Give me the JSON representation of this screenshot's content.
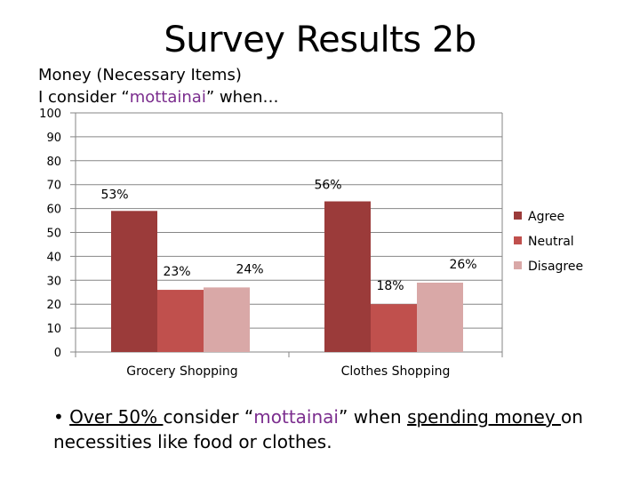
{
  "slide_title": "Survey Results 2b",
  "subtitle": {
    "line1": "Money (Necessary Items)",
    "line2_pre": "I consider “",
    "line2_accent": "mottainai",
    "line2_post": "” when…"
  },
  "note": {
    "bullet": "• ",
    "part1": "Over 50% ",
    "part2": "consider “",
    "accent": "mottainai",
    "part3": "” when ",
    "part4": "spending money ",
    "part5": "on necessities like food or clothes."
  },
  "colors": {
    "agree": "#9b3b3a",
    "neutral": "#c0504d",
    "disagree": "#d9a8a7",
    "accent": "#7b2d8e",
    "axis": "#868686"
  },
  "chart_data": {
    "type": "bar",
    "title": "",
    "xlabel": "",
    "ylabel": "",
    "ylim": [
      0,
      100
    ],
    "yticks": [
      0,
      10,
      20,
      30,
      40,
      50,
      60,
      70,
      80,
      90,
      100
    ],
    "categories": [
      "Grocery Shopping",
      "Clothes Shopping"
    ],
    "series": [
      {
        "name": "Agree",
        "values": [
          59,
          63
        ],
        "labels": [
          "53%",
          "56%"
        ]
      },
      {
        "name": "Neutral",
        "values": [
          26,
          20
        ],
        "labels": [
          "23%",
          "18%"
        ]
      },
      {
        "name": "Disagree",
        "values": [
          27,
          29
        ],
        "labels": [
          "24%",
          "26%"
        ]
      }
    ],
    "grid": true,
    "legend": "right"
  }
}
